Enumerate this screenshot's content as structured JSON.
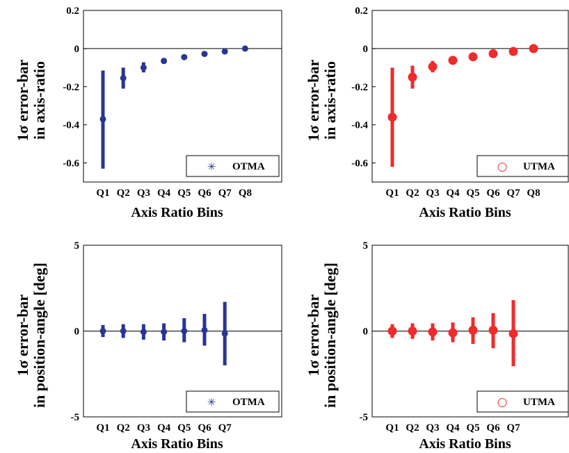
{
  "chart_data": [
    {
      "type": "scatter",
      "ylabel_lines": [
        "1σ error-bar",
        "in axis-ratio"
      ],
      "xlabel": "Axis Ratio Bins",
      "ylim": [
        -0.7,
        0.2
      ],
      "yticks": [
        0.2,
        0,
        -0.2,
        -0.4,
        -0.6
      ],
      "ytick_labels": [
        "0.2",
        "0",
        "-0.2",
        "-0.4",
        "-0.6"
      ],
      "zero_line": 0,
      "categories": [
        "Q1",
        "Q2",
        "Q3",
        "Q4",
        "Q5",
        "Q6",
        "Q7",
        "Q8"
      ],
      "series": [
        {
          "name": "OTMA",
          "color": "#283593",
          "marker": "asterisk",
          "y": [
            -0.37,
            -0.155,
            -0.1,
            -0.065,
            -0.045,
            -0.028,
            -0.015,
            0.0
          ],
          "err_low": [
            -0.63,
            -0.21,
            -0.125,
            -0.08,
            -0.055,
            -0.035,
            -0.022,
            -0.005
          ],
          "err_high": [
            -0.115,
            -0.1,
            -0.072,
            -0.05,
            -0.035,
            -0.02,
            -0.008,
            0.005
          ]
        }
      ],
      "legend": {
        "position": "bottom-right",
        "symbol": "✳"
      }
    },
    {
      "type": "scatter",
      "ylabel_lines": [
        "1σ error-bar",
        "in axis-ratio"
      ],
      "xlabel": "Axis Ratio Bins",
      "ylim": [
        -0.7,
        0.2
      ],
      "yticks": [
        0.2,
        0,
        -0.2,
        -0.4,
        -0.6
      ],
      "ytick_labels": [
        "0.2",
        "0",
        "-0.2",
        "-0.4",
        "-0.6"
      ],
      "zero_line": 0,
      "categories": [
        "Q1",
        "Q2",
        "Q3",
        "Q4",
        "Q5",
        "Q6",
        "Q7",
        "Q8"
      ],
      "series": [
        {
          "name": "UTMA",
          "color": "#ef2b2b",
          "marker": "circle",
          "y": [
            -0.36,
            -0.15,
            -0.095,
            -0.062,
            -0.043,
            -0.027,
            -0.015,
            0.0
          ],
          "err_low": [
            -0.62,
            -0.21,
            -0.125,
            -0.08,
            -0.055,
            -0.035,
            -0.022,
            -0.005
          ],
          "err_high": [
            -0.1,
            -0.09,
            -0.065,
            -0.048,
            -0.033,
            -0.02,
            -0.008,
            0.005
          ]
        }
      ],
      "legend": {
        "position": "bottom-right",
        "symbol": "○"
      }
    },
    {
      "type": "scatter",
      "ylabel_lines": [
        "1σ error-bar",
        "in position-angle [deg]"
      ],
      "xlabel": "Axis Ratio Bins",
      "ylim": [
        -5,
        5
      ],
      "yticks": [
        5,
        0,
        -5
      ],
      "ytick_labels": [
        "5",
        "0",
        "-5"
      ],
      "zero_line": 0,
      "categories": [
        "Q1",
        "Q2",
        "Q3",
        "Q4",
        "Q5",
        "Q6",
        "Q7"
      ],
      "series": [
        {
          "name": "OTMA",
          "color": "#283593",
          "marker": "asterisk",
          "y": [
            0.0,
            0.0,
            -0.05,
            -0.05,
            0.0,
            0.05,
            -0.15
          ],
          "err_low": [
            -0.35,
            -0.4,
            -0.5,
            -0.55,
            -0.65,
            -0.85,
            -2.0
          ],
          "err_high": [
            0.35,
            0.4,
            0.4,
            0.45,
            0.75,
            1.0,
            1.7
          ]
        }
      ],
      "legend": {
        "position": "bottom-right",
        "symbol": "✳"
      }
    },
    {
      "type": "scatter",
      "ylabel_lines": [
        "1σ error-bar",
        "in position-angle [deg]"
      ],
      "xlabel": "Axis Ratio Bins",
      "ylim": [
        -5,
        5
      ],
      "yticks": [
        5,
        0,
        -5
      ],
      "ytick_labels": [
        "5",
        "0",
        "-5"
      ],
      "zero_line": 0,
      "categories": [
        "Q1",
        "Q2",
        "Q3",
        "Q4",
        "Q5",
        "Q6",
        "Q7"
      ],
      "series": [
        {
          "name": "UTMA",
          "color": "#ef2b2b",
          "marker": "circle",
          "y": [
            0.0,
            0.0,
            -0.05,
            -0.1,
            0.05,
            0.05,
            -0.15
          ],
          "err_low": [
            -0.4,
            -0.45,
            -0.55,
            -0.65,
            -0.75,
            -1.0,
            -2.05
          ],
          "err_high": [
            0.4,
            0.45,
            0.45,
            0.5,
            0.8,
            1.05,
            1.8
          ]
        }
      ],
      "legend": {
        "position": "bottom-right",
        "symbol": "○"
      }
    }
  ]
}
